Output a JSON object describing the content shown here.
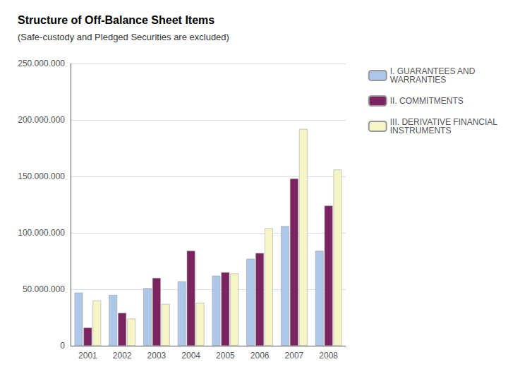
{
  "chart_data": {
    "type": "bar",
    "title": "Structure of Off-Balance Sheet Items",
    "subtitle": "(Safe-custody and Pledged Securities are excluded)",
    "categories": [
      "2001",
      "2002",
      "2003",
      "2004",
      "2005",
      "2006",
      "2007",
      "2008"
    ],
    "series": [
      {
        "name": "I. GUARANTEES AND\nWARRANTIES",
        "color": "#aec6e8",
        "values": [
          47000000,
          45000000,
          51000000,
          57000000,
          62000000,
          77000000,
          106000000,
          84000000
        ]
      },
      {
        "name": "II. COMMITMENTS",
        "color": "#7b2560",
        "values": [
          16000000,
          29000000,
          60000000,
          84000000,
          65000000,
          82000000,
          148000000,
          124000000
        ]
      },
      {
        "name": "III. DERIVATIVE FINANCIAL\nINSTRUMENTS",
        "color": "#f5f5c8",
        "values": [
          40000000,
          24000000,
          37000000,
          38000000,
          64000000,
          104000000,
          192000000,
          156000000
        ]
      }
    ],
    "ylim": [
      0,
      250000000
    ],
    "yticks": [
      0,
      {
        "value": 50000000,
        "label": "50.000.000"
      },
      {
        "value": 100000000,
        "label": "100.000.000"
      },
      {
        "value": 150000000,
        "label": "150.000.000"
      },
      {
        "value": 200000000,
        "label": "200.000.000"
      },
      {
        "value": 250000000,
        "label": "250.000.000"
      }
    ],
    "grid": true,
    "legend": "right"
  }
}
